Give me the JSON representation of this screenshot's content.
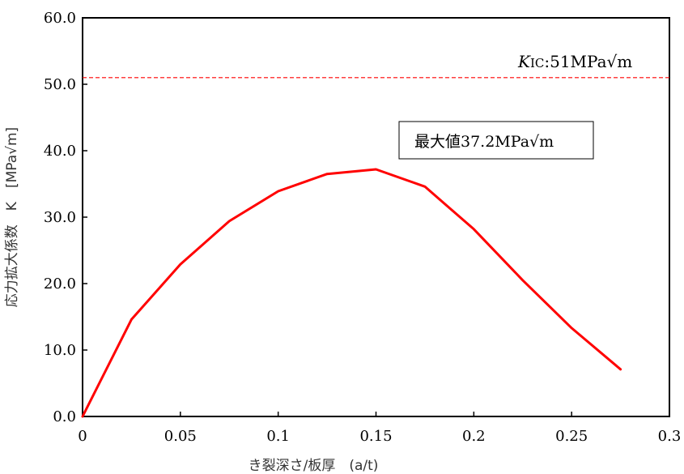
{
  "chart_data": {
    "type": "line",
    "x": [
      0,
      0.025,
      0.05,
      0.075,
      0.1,
      0.125,
      0.15,
      0.175,
      0.2,
      0.225,
      0.25,
      0.275
    ],
    "series": [
      {
        "values": [
          0.0,
          14.6,
          22.9,
          29.4,
          33.9,
          36.5,
          37.2,
          34.6,
          28.2,
          20.5,
          13.3,
          7.1
        ],
        "color": "#ff0000"
      }
    ],
    "reference_line": {
      "y": 51.0,
      "color": "#ff0000",
      "style": "dashed",
      "label_main": "K",
      "label_sub": "IC",
      "label_rest": ":51MPa√m"
    },
    "annotation_box": {
      "text": "最大値37.2MPa√m"
    },
    "xlabel": "き裂深さ/板厚　(a/t)",
    "ylabel": "応力拡大係数　K　[MPa√m]",
    "xlim": [
      0,
      0.3
    ],
    "ylim": [
      0,
      60
    ],
    "x_ticks": [
      "0",
      "0.05",
      "0.1",
      "0.15",
      "0.2",
      "0.25",
      "0.3"
    ],
    "y_ticks": [
      "0.0",
      "10.0",
      "20.0",
      "30.0",
      "40.0",
      "50.0",
      "60.0"
    ],
    "x_tick_values": [
      0,
      0.05,
      0.1,
      0.15,
      0.2,
      0.25,
      0.3
    ],
    "y_tick_values": [
      0,
      10,
      20,
      30,
      40,
      50,
      60
    ],
    "grid": false,
    "legend": "none"
  }
}
